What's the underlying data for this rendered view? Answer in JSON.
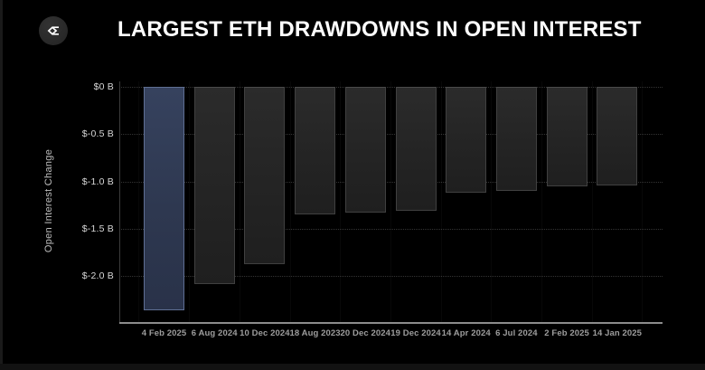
{
  "header": {
    "title": "LARGEST ETH DRAWDOWNS IN OPEN INTEREST",
    "logo_icon": "sigma-diamond-logo"
  },
  "chart_data": {
    "type": "bar",
    "title": "LARGEST ETH DRAWDOWNS IN OPEN INTEREST",
    "xlabel": "",
    "ylabel": "Open Interest Change",
    "categories": [
      "4 Feb 2025",
      "6 Aug 2024",
      "10 Dec 2024",
      "18 Aug 2023",
      "20 Dec 2024",
      "19 Dec 2024",
      "14 Apr 2024",
      "6 Jul 2024",
      "2 Feb 2025",
      "14 Jan 2025"
    ],
    "values": [
      -2.36,
      -2.09,
      -1.88,
      -1.35,
      -1.33,
      -1.31,
      -1.12,
      -1.1,
      -1.05,
      -1.04
    ],
    "unit": "B USD",
    "ylim": [
      -2.49,
      0
    ],
    "yticks": {
      "values": [
        0,
        -0.5,
        -1.0,
        -1.5,
        -2.0
      ],
      "labels": [
        "$0 B",
        "$-0.5 B",
        "$-1.0 B",
        "$-1.5 B",
        "$-2.0 B"
      ]
    },
    "grid": "horizontal-dotted",
    "legend": "none",
    "highlight_index": 0,
    "colors": {
      "background": "#000000",
      "highlight_fill": "#2e3850",
      "highlight_border": "#5f6f94",
      "bar_fill": "#242424",
      "bar_border": "#404040",
      "grid_line": "#343434",
      "axis_line": "#8c8c8c",
      "tick_text": "#d8d8d8",
      "date_text": "#9d9d9d",
      "title_text": "#ffffff"
    }
  }
}
